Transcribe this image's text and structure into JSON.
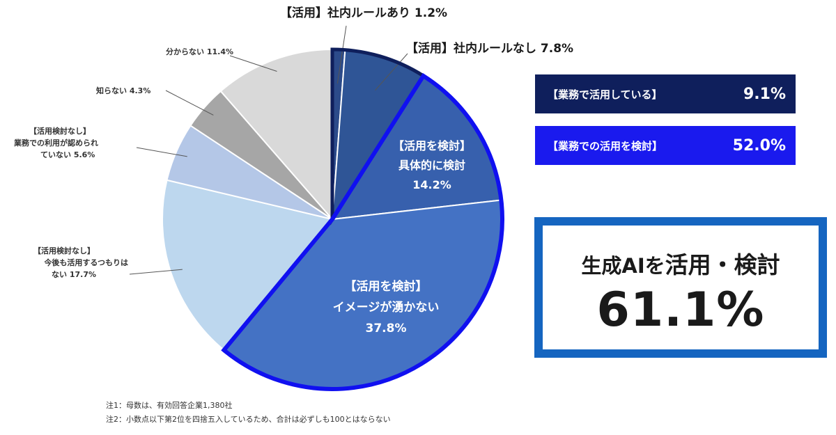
{
  "chart_data": {
    "type": "pie",
    "title": "",
    "slices": [
      {
        "label_lines": [
          "【活用】社内ルールあり 1.2%"
        ],
        "value": 1.2,
        "color": "#2c4b8a"
      },
      {
        "label_lines": [
          "【活用】社内ルールなし 7.8%"
        ],
        "value": 7.8,
        "color": "#2f5596"
      },
      {
        "label_lines": [
          "【活用を検討】",
          "具体的に検討",
          "14.2%"
        ],
        "value": 14.2,
        "color": "#3760ad"
      },
      {
        "label_lines": [
          "【活用を検討】",
          "イメージが湧かない",
          "37.8%"
        ],
        "value": 37.8,
        "color": "#4472c4"
      },
      {
        "label_lines": [
          "【活用検討なし】",
          "今後も活用するつもりは",
          "ない 17.7%"
        ],
        "value": 17.7,
        "color": "#bdd7ee"
      },
      {
        "label_lines": [
          "【活用検討なし】",
          "業務での利用が認められ",
          "ていない 5.6%"
        ],
        "value": 5.6,
        "color": "#b4c7e7"
      },
      {
        "label_lines": [
          "知らない 4.3%"
        ],
        "value": 4.3,
        "color": "#a6a6a6"
      },
      {
        "label_lines": [
          "分からない 11.4%"
        ],
        "value": 11.4,
        "color": "#d9d9d9"
      }
    ]
  },
  "summary": {
    "active_label": "【業務で活用している】",
    "active_value": "9.1%",
    "consider_label": "【業務での活用を検討】",
    "consider_value": "52.0%",
    "total_title_small": "生成AIを",
    "total_title_big": "活用・検討",
    "total_value": "61.1%"
  },
  "notes": [
    "注1：母数は、有効回答企業1,380社",
    "注2：小数点以下第2位を四捨五入しているため、合計は必ずしも100とはならない"
  ],
  "colors": {
    "active_box": "#0f1f5c",
    "consider_box": "#1a1aee",
    "active_outline": "#0f1f5c",
    "consider_outline": "#1010f0",
    "panel_border": "#1565c0"
  }
}
